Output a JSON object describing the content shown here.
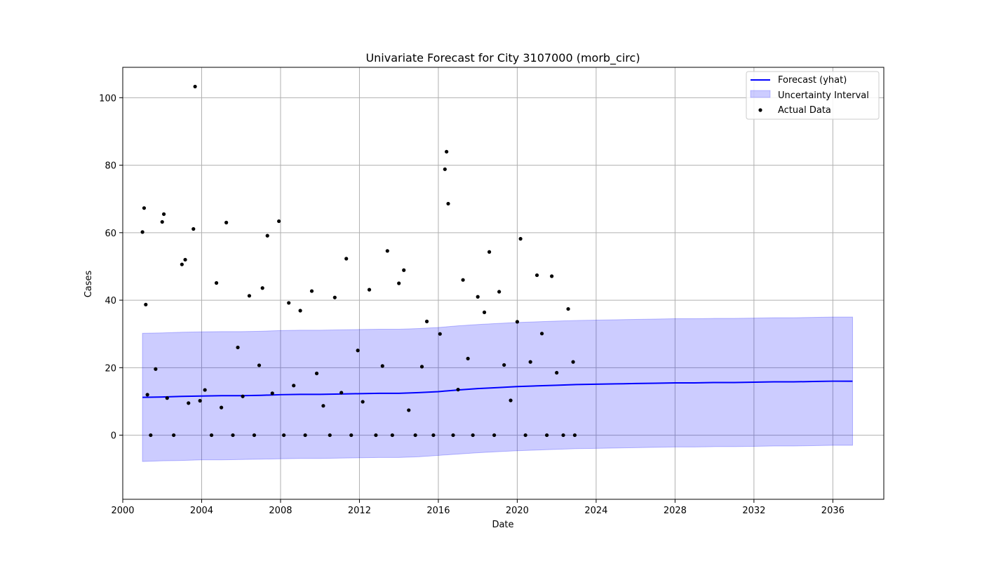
{
  "chart_data": {
    "type": "line",
    "title": "Univariate Forecast for City 3107000 (morb_circ)",
    "xlabel": "Date",
    "ylabel": "Cases",
    "xlim": [
      "2000-01-01",
      "2038-08-01"
    ],
    "ylim": [
      -19,
      109
    ],
    "x_ticks": [
      "2000",
      "2004",
      "2008",
      "2012",
      "2016",
      "2020",
      "2024",
      "2028",
      "2032",
      "2036"
    ],
    "y_ticks": [
      "0",
      "20",
      "40",
      "60",
      "80",
      "100"
    ],
    "grid": true,
    "legend_position": "top-right",
    "colors": {
      "forecast": "#0000ff",
      "interval": "#0000ff",
      "actual": "#000000",
      "grid": "#b0b0b0"
    },
    "series": [
      {
        "name": "Forecast (yhat)",
        "kind": "line",
        "x": [
          "2001-01",
          "2002-01",
          "2003-01",
          "2004-01",
          "2005-01",
          "2006-01",
          "2007-01",
          "2008-01",
          "2009-01",
          "2010-01",
          "2011-01",
          "2012-01",
          "2013-01",
          "2014-01",
          "2015-01",
          "2016-01",
          "2017-01",
          "2018-01",
          "2019-01",
          "2020-01",
          "2021-01",
          "2022-01",
          "2023-01",
          "2024-01",
          "2025-01",
          "2026-01",
          "2027-01",
          "2028-01",
          "2029-01",
          "2030-01",
          "2031-01",
          "2032-01",
          "2033-01",
          "2034-01",
          "2035-01",
          "2036-01",
          "2037-01"
        ],
        "y": [
          11.2,
          11.3,
          11.5,
          11.6,
          11.7,
          11.7,
          11.8,
          12.0,
          12.1,
          12.1,
          12.2,
          12.3,
          12.4,
          12.4,
          12.6,
          12.9,
          13.4,
          13.8,
          14.1,
          14.4,
          14.6,
          14.8,
          15.0,
          15.1,
          15.2,
          15.3,
          15.4,
          15.5,
          15.5,
          15.6,
          15.6,
          15.7,
          15.8,
          15.8,
          15.9,
          16.0,
          16.0
        ]
      },
      {
        "name": "Uncertainty Interval",
        "kind": "band",
        "x": [
          "2001-01",
          "2002-01",
          "2003-01",
          "2004-01",
          "2005-01",
          "2006-01",
          "2007-01",
          "2008-01",
          "2009-01",
          "2010-01",
          "2011-01",
          "2012-01",
          "2013-01",
          "2014-01",
          "2015-01",
          "2016-01",
          "2017-01",
          "2018-01",
          "2019-01",
          "2020-01",
          "2021-01",
          "2022-01",
          "2023-01",
          "2024-01",
          "2025-01",
          "2026-01",
          "2027-01",
          "2028-01",
          "2029-01",
          "2030-01",
          "2031-01",
          "2032-01",
          "2033-01",
          "2034-01",
          "2035-01",
          "2036-01",
          "2037-01"
        ],
        "lower": [
          -7.8,
          -7.6,
          -7.5,
          -7.3,
          -7.3,
          -7.2,
          -7.1,
          -7.0,
          -6.9,
          -6.9,
          -6.8,
          -6.7,
          -6.6,
          -6.6,
          -6.4,
          -6.0,
          -5.6,
          -5.2,
          -4.9,
          -4.6,
          -4.4,
          -4.2,
          -4.0,
          -3.9,
          -3.8,
          -3.7,
          -3.6,
          -3.5,
          -3.5,
          -3.4,
          -3.4,
          -3.3,
          -3.2,
          -3.2,
          -3.1,
          -3.0,
          -3.0
        ],
        "upper": [
          30.2,
          30.3,
          30.5,
          30.6,
          30.7,
          30.7,
          30.8,
          31.0,
          31.1,
          31.1,
          31.2,
          31.3,
          31.4,
          31.4,
          31.6,
          31.9,
          32.4,
          32.8,
          33.1,
          33.4,
          33.6,
          33.8,
          34.0,
          34.1,
          34.2,
          34.3,
          34.4,
          34.5,
          34.5,
          34.6,
          34.6,
          34.7,
          34.8,
          34.8,
          34.9,
          35.0,
          35.0
        ]
      },
      {
        "name": "Actual Data",
        "kind": "scatter",
        "x": [
          "2001-01",
          "2001-02",
          "2001-03",
          "2001-04",
          "2001-06",
          "2001-09",
          "2002-01",
          "2002-02",
          "2002-04",
          "2002-08",
          "2003-01",
          "2003-03",
          "2003-05",
          "2003-08",
          "2003-09",
          "2003-12",
          "2004-03",
          "2004-07",
          "2004-10",
          "2005-01",
          "2005-04",
          "2005-08",
          "2005-11",
          "2006-02",
          "2006-06",
          "2006-09",
          "2006-12",
          "2007-02",
          "2007-05",
          "2007-08",
          "2007-12",
          "2008-03",
          "2008-06",
          "2008-09",
          "2009-01",
          "2009-04",
          "2009-08",
          "2009-11",
          "2010-03",
          "2010-07",
          "2010-10",
          "2011-02",
          "2011-05",
          "2011-08",
          "2011-12",
          "2012-03",
          "2012-07",
          "2012-11",
          "2013-03",
          "2013-06",
          "2013-09",
          "2014-01",
          "2014-04",
          "2014-07",
          "2014-11",
          "2015-03",
          "2015-06",
          "2015-10",
          "2016-02",
          "2016-05",
          "2016-06",
          "2016-07",
          "2016-10",
          "2017-01",
          "2017-04",
          "2017-07",
          "2017-10",
          "2018-01",
          "2018-05",
          "2018-08",
          "2018-11",
          "2019-02",
          "2019-05",
          "2019-09",
          "2020-01",
          "2020-03",
          "2020-06",
          "2020-09",
          "2021-01",
          "2021-04",
          "2021-07",
          "2021-10",
          "2022-01",
          "2022-05",
          "2022-08",
          "2022-11",
          "2022-12"
        ],
        "y": [
          60.2,
          67.3,
          38.7,
          12.0,
          0,
          19.6,
          63.2,
          65.5,
          11.0,
          0,
          50.6,
          52.0,
          9.5,
          61.1,
          103.3,
          10.2,
          13.4,
          0,
          45.1,
          8.2,
          63.0,
          0,
          26.0,
          11.5,
          41.3,
          0,
          20.7,
          43.6,
          59.1,
          12.4,
          63.4,
          0,
          39.2,
          14.7,
          36.9,
          0,
          42.7,
          18.3,
          8.7,
          0,
          40.8,
          12.6,
          52.3,
          0,
          25.1,
          9.9,
          43.1,
          0,
          20.5,
          54.6,
          0,
          45.0,
          48.9,
          7.4,
          0,
          20.3,
          33.7,
          0,
          30.0,
          78.8,
          84.0,
          68.6,
          0,
          13.5,
          46.0,
          22.7,
          0,
          41.0,
          36.4,
          54.3,
          0,
          42.5,
          20.8,
          10.3,
          33.6,
          58.2,
          0,
          21.7,
          47.4,
          30.1,
          0,
          47.1,
          18.5,
          0,
          37.4,
          21.7,
          0
        ]
      }
    ]
  }
}
